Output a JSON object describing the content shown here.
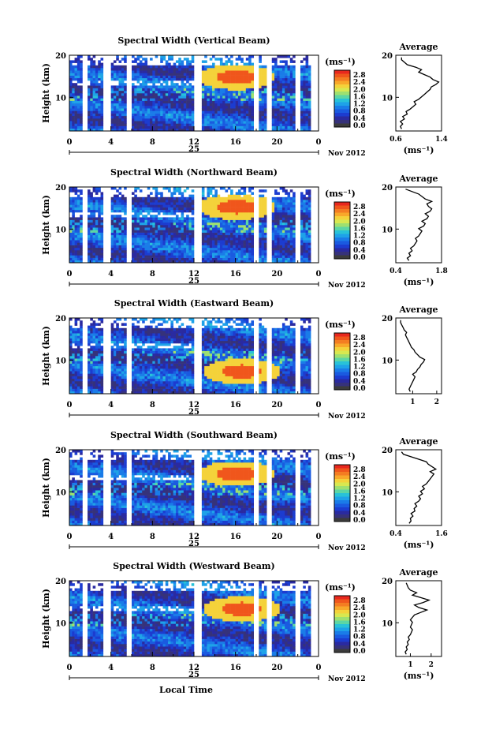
{
  "colors": {
    "colorbar_top_to_bottom": [
      "#e8281e",
      "#f0561c",
      "#f47d22",
      "#f8a82a",
      "#f4d23a",
      "#d8e850",
      "#9ee070",
      "#5cd6a4",
      "#28c2d8",
      "#1ea2e8",
      "#1a7ce8",
      "#1a5ae0",
      "#1c3cd0",
      "#2a2aa0",
      "#36327a",
      "#3c3c3c"
    ]
  },
  "chart_data": [
    {
      "type": "heatmap",
      "title": "Spectral Width (Vertical Beam)",
      "ylabel": "Height (km)",
      "yticks": [
        "20",
        "10"
      ],
      "xticks": [
        "0",
        "4",
        "8",
        "12",
        "16",
        "20",
        "0"
      ],
      "date_day": "25",
      "date_month_year": "Nov 2012",
      "colorbar_unit": "(ms⁻¹)",
      "colorbar_ticks": [
        "2.8",
        "2.4",
        "2.0",
        "1.6",
        "1.2",
        "0.8",
        "0.4",
        "0.0"
      ],
      "profile_title": "Average",
      "profile_xticks": [
        "0.6",
        "1.4"
      ],
      "profile_yticks": [
        "20",
        "10"
      ],
      "profile_xlabel": "(ms⁻¹)",
      "profile_xlim": [
        0.6,
        1.4
      ],
      "profile_ylim": [
        2,
        20
      ],
      "profile_values": [
        0.7,
        0.68,
        0.72,
        0.68,
        0.75,
        0.72,
        0.8,
        0.78,
        0.85,
        0.9,
        0.95,
        0.92,
        1.0,
        1.05,
        1.1,
        1.15,
        1.2,
        1.22,
        1.3,
        1.35,
        1.25,
        1.2,
        1.1,
        1.0,
        1.05,
        0.95,
        0.8,
        0.75,
        0.7,
        0.7
      ],
      "hotspot": {
        "t": 16,
        "h": 14.5
      }
    },
    {
      "type": "heatmap",
      "title": "Spectral Width (Northward Beam)",
      "ylabel": "Height (km)",
      "yticks": [
        "20",
        "10"
      ],
      "xticks": [
        "0",
        "4",
        "8",
        "12",
        "16",
        "20",
        "0"
      ],
      "date_day": "25",
      "date_month_year": "Nov 2012",
      "colorbar_unit": "(ms⁻¹)",
      "colorbar_ticks": [
        "2.8",
        "2.4",
        "2.0",
        "1.6",
        "1.2",
        "0.8",
        "0.4",
        "0.0"
      ],
      "profile_title": "Average",
      "profile_xticks": [
        "0.4",
        "1.8"
      ],
      "profile_yticks": [
        "20",
        "10"
      ],
      "profile_xlabel": "(ms⁻¹)",
      "profile_xlim": [
        0.4,
        1.8
      ],
      "profile_ylim": [
        2,
        20
      ],
      "profile_values": [
        0.8,
        0.75,
        0.85,
        0.8,
        0.9,
        0.85,
        0.95,
        1.0,
        1.05,
        1.0,
        1.1,
        1.15,
        1.2,
        1.1,
        1.25,
        1.3,
        1.2,
        1.35,
        1.4,
        1.3,
        1.45,
        1.5,
        1.4,
        1.35,
        1.5,
        1.3,
        1.2,
        1.1,
        0.9,
        0.7
      ],
      "hotspot": {
        "t": 16,
        "h": 15
      }
    },
    {
      "type": "heatmap",
      "title": "Spectral Width (Eastward Beam)",
      "ylabel": "Height (km)",
      "yticks": [
        "20",
        "10"
      ],
      "xticks": [
        "0",
        "4",
        "8",
        "12",
        "16",
        "20",
        "0"
      ],
      "date_day": "25",
      "date_month_year": "Nov 2012",
      "colorbar_unit": "(ms⁻¹)",
      "colorbar_ticks": [
        "2.8",
        "2.4",
        "2.0",
        "1.6",
        "1.2",
        "0.8",
        "0.4",
        "0.0"
      ],
      "profile_title": "Average",
      "profile_xticks": [
        "1",
        "2"
      ],
      "profile_yticks": [
        "20",
        "10"
      ],
      "profile_xlabel": "",
      "profile_xlim": [
        0.3,
        2.2
      ],
      "profile_ylim": [
        2,
        20
      ],
      "profile_values": [
        0.9,
        0.85,
        0.9,
        0.95,
        1.0,
        1.05,
        1.1,
        1.0,
        1.15,
        1.2,
        1.3,
        1.35,
        1.45,
        1.5,
        1.3,
        1.2,
        1.1,
        1.05,
        0.95,
        0.9,
        0.85,
        0.8,
        0.75,
        0.7,
        0.75,
        0.65,
        0.6,
        0.55,
        0.5,
        0.5
      ],
      "hotspot": {
        "t": 16.5,
        "h": 7
      }
    },
    {
      "type": "heatmap",
      "title": "Spectral Width (Southward Beam)",
      "ylabel": "Height (km)",
      "yticks": [
        "20",
        "10"
      ],
      "xticks": [
        "0",
        "4",
        "8",
        "12",
        "16",
        "20",
        "0"
      ],
      "date_day": "25",
      "date_month_year": "Nov 2012",
      "colorbar_unit": "(ms⁻¹)",
      "colorbar_ticks": [
        "2.8",
        "2.4",
        "2.0",
        "1.6",
        "1.2",
        "0.8",
        "0.4",
        "0.0"
      ],
      "profile_title": "Average",
      "profile_xticks": [
        "0.4",
        "1.6"
      ],
      "profile_yticks": [
        "20",
        "10"
      ],
      "profile_xlabel": "(ms⁻¹)",
      "profile_xlim": [
        0.4,
        1.6
      ],
      "profile_ylim": [
        2,
        20
      ],
      "profile_values": [
        0.75,
        0.8,
        0.78,
        0.85,
        0.8,
        0.9,
        0.88,
        0.95,
        0.9,
        1.0,
        1.05,
        1.0,
        1.1,
        1.05,
        1.15,
        1.1,
        1.2,
        1.25,
        1.3,
        1.35,
        1.4,
        1.3,
        1.45,
        1.35,
        1.25,
        1.2,
        1.0,
        0.8,
        0.6,
        0.55
      ],
      "hotspot": {
        "t": 16,
        "h": 14
      }
    },
    {
      "type": "heatmap",
      "title": "Spectral Width (Westward Beam)",
      "ylabel": "Height (km)",
      "yticks": [
        "20",
        "10"
      ],
      "xticks": [
        "0",
        "4",
        "8",
        "12",
        "16",
        "20",
        "0"
      ],
      "date_day": "25",
      "date_month_year": "Nov 2012",
      "colorbar_unit": "(ms⁻¹)",
      "colorbar_ticks": [
        "2.8",
        "2.4",
        "2.0",
        "1.6",
        "1.2",
        "0.8",
        "0.4",
        "0.0"
      ],
      "profile_title": "Average",
      "profile_xticks": [
        "1",
        "2"
      ],
      "profile_yticks": [
        "20",
        "10"
      ],
      "profile_xlabel": "(ms⁻¹)",
      "profile_xlim": [
        0.3,
        2.5
      ],
      "profile_ylim": [
        2,
        20
      ],
      "profile_values": [
        0.8,
        0.75,
        0.85,
        0.8,
        0.9,
        0.85,
        0.95,
        0.9,
        1.0,
        1.05,
        1.1,
        1.0,
        1.05,
        1.1,
        1.0,
        1.1,
        1.2,
        1.5,
        1.8,
        1.4,
        1.2,
        1.6,
        1.9,
        1.5,
        1.1,
        1.3,
        1.0,
        0.9,
        0.85,
        0.8
      ],
      "hotspot": {
        "t": 16.5,
        "h": 13
      }
    }
  ],
  "xlabel": "Local Time"
}
